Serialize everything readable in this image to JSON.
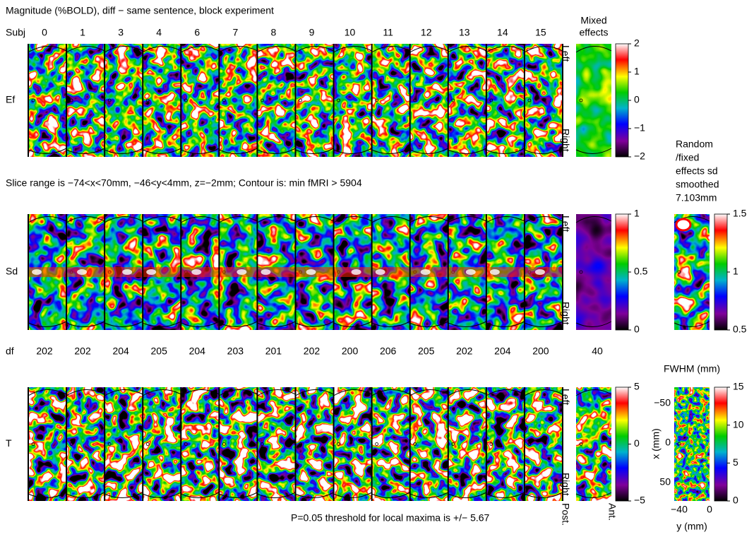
{
  "header": {
    "title": "Magnitude (%BOLD), diff − same sentence, block experiment",
    "subj_label": "Subj",
    "subjects": [
      "0",
      "1",
      "3",
      "4",
      "6",
      "7",
      "8",
      "9",
      "10",
      "11",
      "12",
      "13",
      "14",
      "15"
    ],
    "mixed_title": [
      "Mixed",
      "effects"
    ]
  },
  "rows": [
    {
      "label": "Ef",
      "colorbar_ticks": [
        "2",
        "1",
        "0",
        "−1",
        "−2"
      ]
    },
    {
      "label": "Sd",
      "colorbar_ticks": [
        "1",
        "0.5",
        "0"
      ]
    },
    {
      "label": "T",
      "colorbar_ticks": [
        "5",
        "0",
        "−5"
      ]
    }
  ],
  "orientation": {
    "left": "Left",
    "right": "Right",
    "post": "Post.",
    "ant": "Ant."
  },
  "slice_note": "Slice range is −74<x<70mm, −46<y<4mm,  z=−2mm; Contour is: min fMRI > 5904",
  "df": {
    "label": "df",
    "values": [
      202,
      202,
      204,
      205,
      204,
      203,
      201,
      202,
      200,
      206,
      205,
      202,
      204,
      200
    ],
    "mixed": "40"
  },
  "random_panel": {
    "title": [
      "Random",
      "/fixed",
      "effects sd",
      "smoothed",
      "7.103mm"
    ],
    "colorbar_ticks": [
      "1.5",
      "1",
      "0.5"
    ]
  },
  "fwhm_panel": {
    "title": "FWHM (mm)",
    "colorbar_ticks": [
      "15",
      "10",
      "5",
      "0"
    ],
    "x_label": "x (mm)",
    "x_ticks": [
      "−50",
      "0",
      "50"
    ],
    "y_label": "y (mm)",
    "y_ticks": [
      "−40",
      "0"
    ]
  },
  "threshold_note": "P=0.05 threshold for local maxima is +/− 5.67"
}
